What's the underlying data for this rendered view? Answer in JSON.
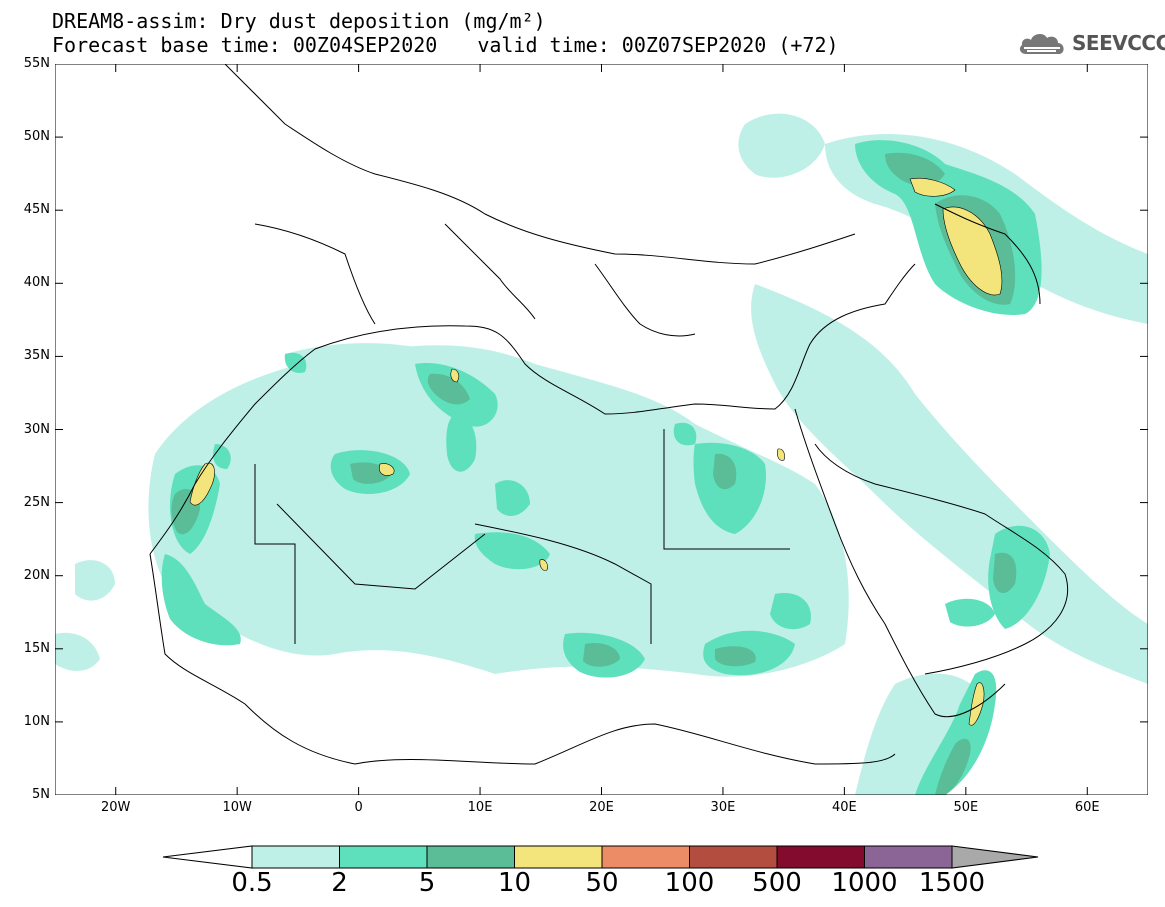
{
  "header": {
    "title_line1": "DREAM8-assim: Dry dust deposition (mg/m²)",
    "base_time": "Forecast base time: 00Z04SEP2020",
    "valid_time": "valid time: 00Z07SEP2020 (+72)"
  },
  "logo": {
    "text": "SEEVCCC",
    "icon": "cloud-icon"
  },
  "map": {
    "lat_labels": [
      "55N",
      "50N",
      "45N",
      "40N",
      "35N",
      "30N",
      "25N",
      "20N",
      "15N",
      "10N",
      "5N"
    ],
    "lon_labels": [
      "20W",
      "10W",
      "0",
      "10E",
      "20E",
      "30E",
      "40E",
      "50E",
      "60E"
    ],
    "lat_range": [
      5,
      55
    ],
    "lon_range": [
      -25,
      65
    ]
  },
  "colorbar": {
    "labels": [
      "0.5",
      "2",
      "5",
      "10",
      "50",
      "100",
      "500",
      "1000",
      "1500"
    ],
    "colors": [
      "#bff0e8",
      "#5ee0bc",
      "#5abd98",
      "#f3e57c",
      "#ec8c66",
      "#b24d40",
      "#820b2e",
      "#8c6597"
    ],
    "under_color": "#ffffff",
    "over_color": "#a9a9a9"
  }
}
